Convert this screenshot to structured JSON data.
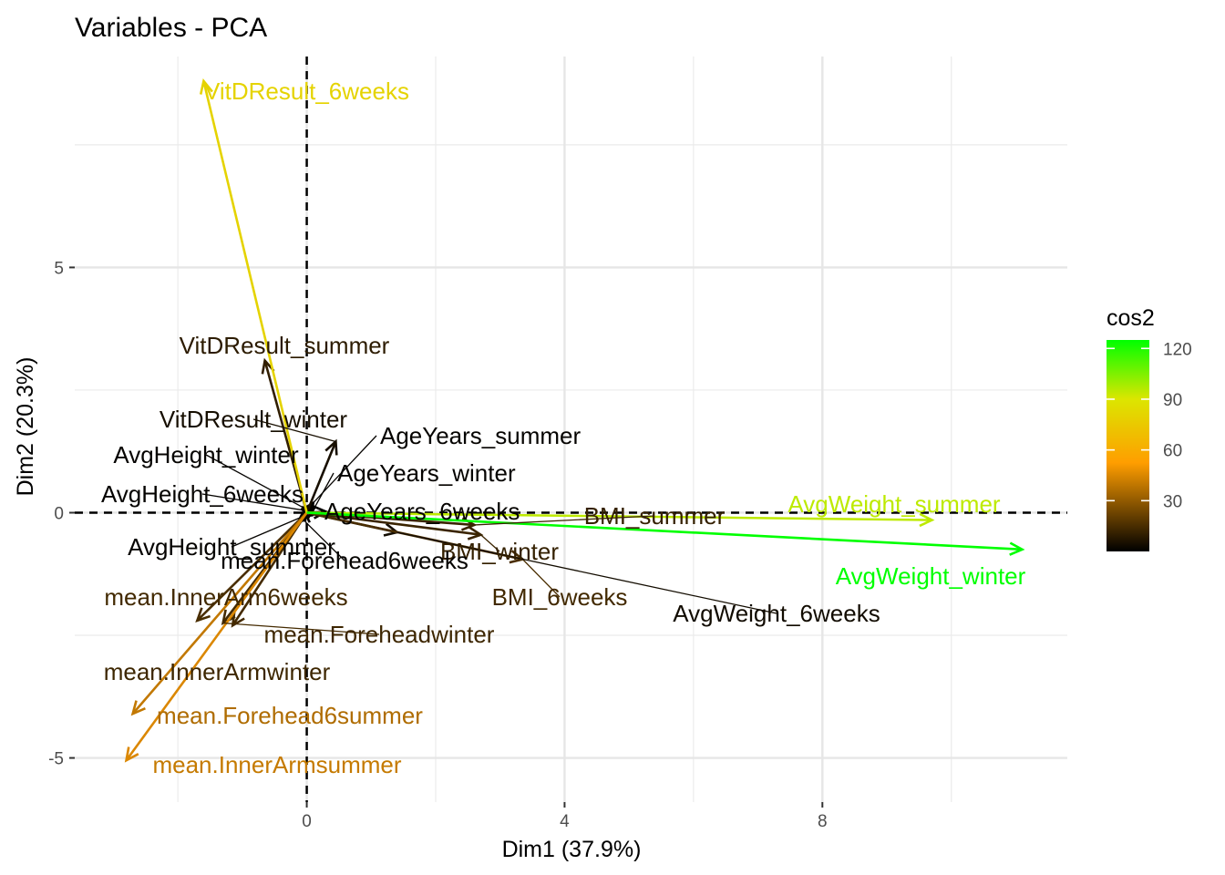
{
  "chart_data": {
    "type": "scatter",
    "title": "Variables - PCA",
    "xlabel": "Dim1 (37.9%)",
    "ylabel": "Dim2 (20.3%)",
    "xlim": [
      -3.6,
      11.8
    ],
    "ylim": [
      -5.9,
      9.3
    ],
    "x_ticks": [
      0,
      4,
      8
    ],
    "y_ticks": [
      -5,
      0,
      5
    ],
    "grid": true,
    "reference_lines": "dashed at x=0 and y=0",
    "legend": {
      "title": "cos2",
      "placement": "right",
      "ticks": [
        30,
        60,
        90,
        120
      ],
      "range": [
        0,
        125
      ],
      "colors": [
        "#000000",
        "#ff9e00",
        "#dce600",
        "#00ff00"
      ]
    },
    "vectors": [
      {
        "name": "VitDResult_6weeks",
        "x": -1.6,
        "y": 8.8,
        "cos2": 80
      },
      {
        "name": "VitDResult_summer",
        "x": -0.65,
        "y": 3.1,
        "cos2": 10
      },
      {
        "name": "VitDResult_winter",
        "x": 0.45,
        "y": 1.45,
        "cos2": 5
      },
      {
        "name": "AgeYears_summer",
        "x": 0.1,
        "y": 0.2,
        "cos2": 1
      },
      {
        "name": "AgeYears_winter",
        "x": 0.12,
        "y": 0.1,
        "cos2": 1
      },
      {
        "name": "AgeYears_6weeks",
        "x": 0.3,
        "y": 0.02,
        "cos2": 1
      },
      {
        "name": "AvgHeight_winter",
        "x": -0.05,
        "y": 0.1,
        "cos2": 1
      },
      {
        "name": "AvgHeight_6weeks",
        "x": -0.05,
        "y": 0.05,
        "cos2": 1
      },
      {
        "name": "AvgHeight_summer",
        "x": -0.1,
        "y": -0.1,
        "cos2": 1
      },
      {
        "name": "BMI_summer",
        "x": 2.6,
        "y": -0.25,
        "cos2": 12
      },
      {
        "name": "BMI_winter",
        "x": 2.7,
        "y": -0.45,
        "cos2": 12
      },
      {
        "name": "BMI_6weeks",
        "x": 3.35,
        "y": -0.95,
        "cos2": 15
      },
      {
        "name": "AvgWeight_summer",
        "x": 9.7,
        "y": -0.15,
        "cos2": 95
      },
      {
        "name": "AvgWeight_winter",
        "x": 11.1,
        "y": -0.75,
        "cos2": 125
      },
      {
        "name": "AvgWeight_6weeks",
        "x": 1.4,
        "y": -0.4,
        "cos2": 4
      },
      {
        "name": "mean.Forehead6weeks",
        "x": -0.05,
        "y": -0.15,
        "cos2": 1
      },
      {
        "name": "mean.InnerArm6weeks",
        "x": -1.7,
        "y": -2.2,
        "cos2": 15
      },
      {
        "name": "mean.Foreheadwinter",
        "x": -1.3,
        "y": -2.25,
        "cos2": 14
      },
      {
        "name": "mean.InnerArmwinter",
        "x": -1.15,
        "y": -2.3,
        "cos2": 14
      },
      {
        "name": "mean.Forehead6summer",
        "x": -2.7,
        "y": -4.1,
        "cos2": 40
      },
      {
        "name": "mean.InnerArmsummer",
        "x": -2.8,
        "y": -5.05,
        "cos2": 45
      }
    ]
  }
}
